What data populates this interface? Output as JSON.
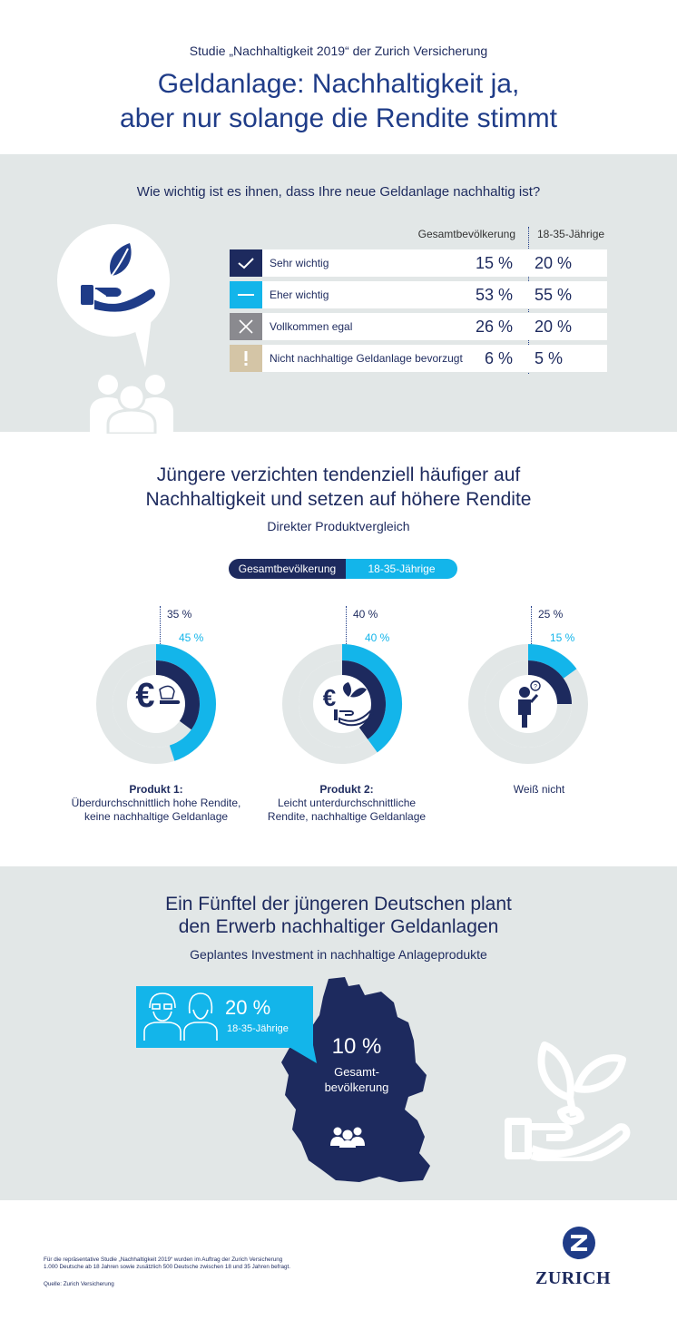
{
  "header": {
    "subtitle": "Studie „Nachhaltigkeit 2019“ der Zurich Versicherung",
    "title_line1": "Geldanlage: Nachhaltigkeit ja,",
    "title_line2": "aber nur solange die Rendite stimmt"
  },
  "section1": {
    "question": "Wie wichtig ist es ihnen, dass Ihre neue Geldanlage nachhaltig ist?",
    "col_a": "Gesamtbevölkerung",
    "col_b": "18-35-Jährige",
    "rows": [
      {
        "label": "Sehr wichtig",
        "a": "15 %",
        "b": "20 %",
        "icon": "check-icon",
        "color": "#1d2a5e"
      },
      {
        "label": "Eher wichtig",
        "a": "53 %",
        "b": "55 %",
        "icon": "minus-icon",
        "color": "#13b5ea"
      },
      {
        "label": "Vollkommen egal",
        "a": "26 %",
        "b": "20 %",
        "icon": "x-icon",
        "color": "#8a8a8f"
      },
      {
        "label": "Nicht nachhaltige Geldanlage bevorzugt",
        "a": "6 %",
        "b": "5 %",
        "icon": "exclamation-icon",
        "color": "#d4c5a6"
      }
    ]
  },
  "section2": {
    "heading_line1": "Jüngere verzichten tendenziell häufiger auf",
    "heading_line2": "Nachhaltigkeit und setzen auf höhere Rendite",
    "sub": "Direkter Produktvergleich",
    "legend_a": "Gesamtbevölkerung",
    "legend_b": "18-35-Jährige",
    "products": [
      {
        "title": "Produkt 1:",
        "desc_line1": "Überdurchschnittlich hohe Rendite,",
        "desc_line2": "keine nachhaltige Geldanlage",
        "a_label": "35 %",
        "b_label": "45 %",
        "icon": "euro-icon"
      },
      {
        "title": "Produkt 2:",
        "desc_line1": "Leicht unterdurchschnittliche",
        "desc_line2": "Rendite, nachhaltige Geldanlage",
        "a_label": "40 %",
        "b_label": "40 %",
        "icon": "euro-plant-hand-icon"
      },
      {
        "title": "",
        "desc_line1": "Weiß nicht",
        "desc_line2": "",
        "a_label": "25 %",
        "b_label": "15 %",
        "icon": "confused-person-icon"
      }
    ]
  },
  "chart_data": {
    "type": "pie",
    "series": [
      {
        "name": "Gesamtbevölkerung",
        "values": [
          35,
          40,
          25
        ]
      },
      {
        "name": "18-35-Jährige",
        "values": [
          45,
          40,
          15
        ]
      }
    ],
    "categories": [
      "Produkt 1",
      "Produkt 2",
      "Weiß nicht"
    ],
    "colors": {
      "Gesamtbevölkerung": "#1d2a5e",
      "18-35-Jährige": "#13b5ea",
      "track": "#e2e7e7"
    }
  },
  "section3": {
    "heading_line1": "Ein Fünftel der jüngeren Deutschen plant",
    "heading_line2": "den Erwerb nachhaltiger Geldanlagen",
    "sub": "Geplantes Investment in nachhaltige Anlageprodukte",
    "young_value": "20 %",
    "young_label": "18-35-Jährige",
    "total_value": "10 %",
    "total_label_line1": "Gesamt-",
    "total_label_line2": "bevölkerung"
  },
  "footer": {
    "note_line1": "Für die repräsentative Studie „Nachhaltigkeit 2019“ wurden im Auftrag der Zurich Versicherung",
    "note_line2": "1.000 Deutsche ab 18 Jahren sowie zusätzlich 500 Deutsche zwischen 18 und 35 Jahren befragt.",
    "source": "Quelle: Zurich Versicherung",
    "logo_text": "ZURICH"
  },
  "colors": {
    "navy": "#1d2a5e",
    "cyan": "#13b5ea",
    "grey_bg": "#e2e7e7"
  }
}
